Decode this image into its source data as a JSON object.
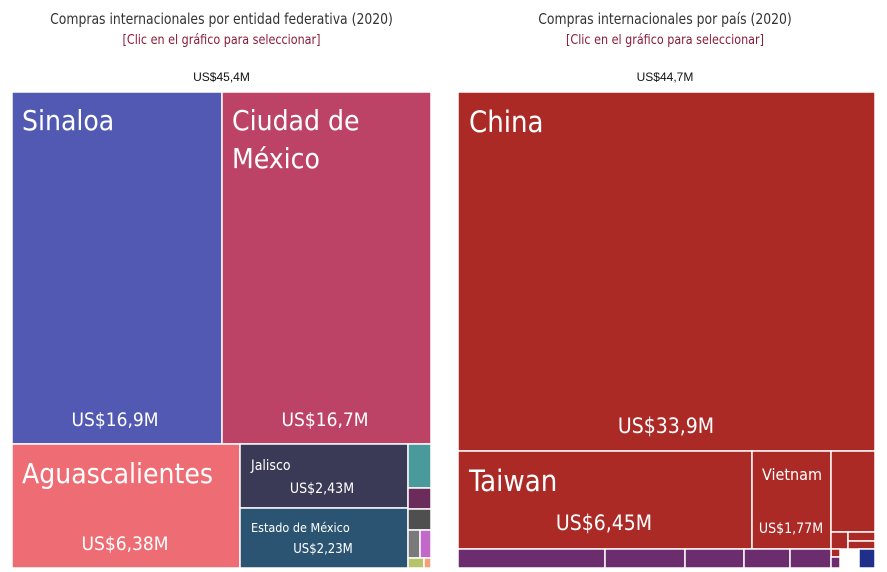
{
  "chart_data": [
    {
      "type": "treemap",
      "title": "Compras internacionales por entidad federativa (2020)",
      "subtitle": "[Clic en el gráfico para seleccionar]",
      "total_label": "US$45,4M",
      "items": [
        {
          "label": "Sinaloa",
          "value_label": "US$16,9M",
          "value": 16.9,
          "color": "#5159b3"
        },
        {
          "label": "Ciudad de México",
          "value_label": "US$16,7M",
          "value": 16.7,
          "color": "#bd4366"
        },
        {
          "label": "Aguascalientes",
          "value_label": "US$6,38M",
          "value": 6.38,
          "color": "#ee6c73"
        },
        {
          "label": "Jalisco",
          "value_label": "US$2,43M",
          "value": 2.43,
          "color": "#3b3a56"
        },
        {
          "label": "Estado de México",
          "value_label": "US$2,23M",
          "value": 2.23,
          "color": "#2b5472"
        },
        {
          "label": "",
          "value_label": "",
          "color": "#4a9a9c"
        },
        {
          "label": "",
          "value_label": "",
          "color": "#6b2b5b"
        },
        {
          "label": "",
          "value_label": "",
          "color": "#4f4f4f"
        },
        {
          "label": "",
          "value_label": "",
          "color": "#7a7a7a"
        },
        {
          "label": "",
          "value_label": "",
          "color": "#c268c9"
        },
        {
          "label": "",
          "value_label": "",
          "color": "#b7c36a"
        },
        {
          "label": "",
          "value_label": "",
          "color": "#f0a07a"
        }
      ]
    },
    {
      "type": "treemap",
      "title": "Compras internacionales por país (2020)",
      "subtitle": "[Clic en el gráfico para seleccionar]",
      "total_label": "US$44,7M",
      "items": [
        {
          "label": "China",
          "value_label": "US$33,9M",
          "value": 33.9,
          "color": "#ab2a26"
        },
        {
          "label": "Taiwan",
          "value_label": "US$6,45M",
          "value": 6.45,
          "color": "#ab2a26"
        },
        {
          "label": "Vietnam",
          "value_label": "US$1,77M",
          "value": 1.77,
          "color": "#ab2a26"
        },
        {
          "label": "",
          "value_label": "",
          "color": "#ab2a26"
        },
        {
          "label": "",
          "value_label": "",
          "color": "#ab2a26"
        },
        {
          "label": "",
          "value_label": "",
          "color": "#ab2a26"
        },
        {
          "label": "",
          "value_label": "",
          "color": "#ab2a26"
        },
        {
          "label": "",
          "value_label": "",
          "color": "#ab2a26"
        },
        {
          "label": "",
          "value_label": "",
          "color": "#6b2d6e"
        },
        {
          "label": "",
          "value_label": "",
          "color": "#6b2d6e"
        },
        {
          "label": "",
          "value_label": "",
          "color": "#6b2d6e"
        },
        {
          "label": "",
          "value_label": "",
          "color": "#6b2d6e"
        },
        {
          "label": "",
          "value_label": "",
          "color": "#6b2d6e"
        },
        {
          "label": "",
          "value_label": "",
          "color": "#6b2d6e"
        },
        {
          "label": "",
          "value_label": "",
          "color": "#1f2f8a"
        }
      ]
    }
  ]
}
